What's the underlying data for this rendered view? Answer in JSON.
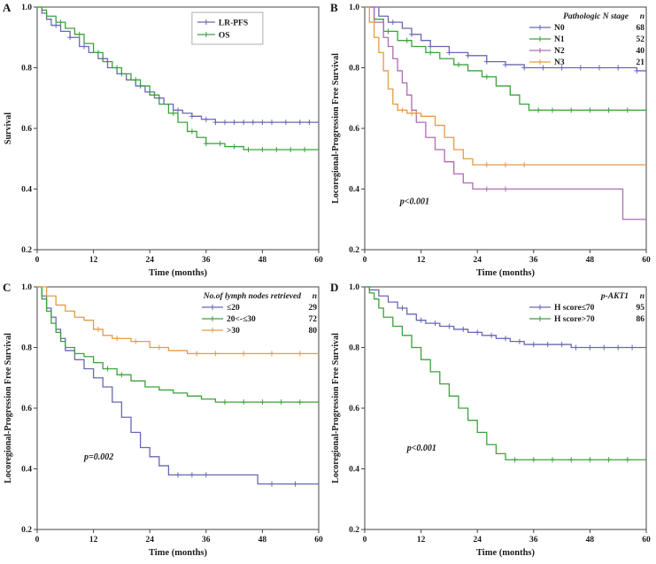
{
  "chart_data": [
    {
      "panel_label": "A",
      "type": "line",
      "subtype": "kaplan-meier",
      "xlabel": "Time (months)",
      "ylabel": "Survival",
      "xlim": [
        0,
        60
      ],
      "ylim": [
        0.2,
        1.0
      ],
      "xticks": [
        0,
        12,
        24,
        36,
        48,
        60
      ],
      "yticks": [
        0.2,
        0.4,
        0.6,
        0.8,
        1.0
      ],
      "grid": false,
      "legend": {
        "anchor": "top-center",
        "bordered": true,
        "title": null,
        "show_n": false
      },
      "annotation": null,
      "series": [
        {
          "name": "LR-PFS",
          "color": "#6868b5",
          "points": [
            [
              0,
              1.0
            ],
            [
              1,
              0.98
            ],
            [
              2,
              0.96
            ],
            [
              3,
              0.94
            ],
            [
              5,
              0.92
            ],
            [
              7,
              0.9
            ],
            [
              9,
              0.87
            ],
            [
              11,
              0.85
            ],
            [
              13,
              0.83
            ],
            [
              15,
              0.8
            ],
            [
              17,
              0.78
            ],
            [
              19,
              0.76
            ],
            [
              21,
              0.74
            ],
            [
              23,
              0.72
            ],
            [
              25,
              0.7
            ],
            [
              27,
              0.68
            ],
            [
              29,
              0.66
            ],
            [
              31,
              0.65
            ],
            [
              33,
              0.64
            ],
            [
              35,
              0.63
            ],
            [
              38,
              0.62
            ],
            [
              60,
              0.62
            ]
          ],
          "censors": [
            4,
            7,
            10,
            14,
            18,
            22,
            26,
            30,
            33,
            36,
            38,
            40,
            42,
            44,
            46,
            48,
            50,
            53,
            56,
            58
          ]
        },
        {
          "name": "OS",
          "color": "#3da23d",
          "points": [
            [
              0,
              1.0
            ],
            [
              1,
              0.99
            ],
            [
              2,
              0.97
            ],
            [
              4,
              0.95
            ],
            [
              6,
              0.93
            ],
            [
              8,
              0.91
            ],
            [
              10,
              0.88
            ],
            [
              12,
              0.85
            ],
            [
              14,
              0.82
            ],
            [
              16,
              0.8
            ],
            [
              18,
              0.78
            ],
            [
              20,
              0.76
            ],
            [
              22,
              0.74
            ],
            [
              24,
              0.71
            ],
            [
              26,
              0.68
            ],
            [
              28,
              0.65
            ],
            [
              30,
              0.62
            ],
            [
              32,
              0.59
            ],
            [
              34,
              0.57
            ],
            [
              36,
              0.55
            ],
            [
              40,
              0.54
            ],
            [
              44,
              0.53
            ],
            [
              60,
              0.53
            ]
          ],
          "censors": [
            5,
            9,
            13,
            17,
            21,
            25,
            29,
            33,
            36,
            39,
            42,
            45,
            48,
            51,
            54,
            57
          ]
        }
      ]
    },
    {
      "panel_label": "B",
      "type": "line",
      "subtype": "kaplan-meier",
      "xlabel": "Time (months)",
      "ylabel": "Locoregional-Progression Free Survival",
      "xlim": [
        0,
        60
      ],
      "ylim": [
        0.2,
        1.0
      ],
      "xticks": [
        0,
        12,
        24,
        36,
        48,
        60
      ],
      "yticks": [
        0.2,
        0.4,
        0.6,
        0.8,
        1.0
      ],
      "grid": false,
      "legend": {
        "anchor": "top-right",
        "bordered": false,
        "title": "Pathologic N stage",
        "show_n": true
      },
      "annotation": {
        "text": "p<0.001",
        "x": 7.5,
        "y": 0.35
      },
      "series": [
        {
          "name": "N0",
          "n": 68,
          "color": "#6868b5",
          "points": [
            [
              0,
              1.0
            ],
            [
              3,
              0.97
            ],
            [
              5,
              0.95
            ],
            [
              8,
              0.93
            ],
            [
              10,
              0.91
            ],
            [
              12,
              0.89
            ],
            [
              14,
              0.87
            ],
            [
              18,
              0.85
            ],
            [
              22,
              0.84
            ],
            [
              26,
              0.82
            ],
            [
              30,
              0.81
            ],
            [
              34,
              0.8
            ],
            [
              44,
              0.8
            ],
            [
              58,
              0.79
            ],
            [
              60,
              0.79
            ]
          ],
          "censors": [
            6,
            10,
            14,
            18,
            22,
            26,
            30,
            34,
            38,
            42,
            46,
            50,
            54,
            58
          ]
        },
        {
          "name": "N1",
          "n": 52,
          "color": "#3da23d",
          "points": [
            [
              0,
              1.0
            ],
            [
              2,
              0.96
            ],
            [
              4,
              0.92
            ],
            [
              7,
              0.89
            ],
            [
              10,
              0.87
            ],
            [
              13,
              0.85
            ],
            [
              16,
              0.83
            ],
            [
              19,
              0.81
            ],
            [
              22,
              0.79
            ],
            [
              25,
              0.77
            ],
            [
              28,
              0.74
            ],
            [
              31,
              0.71
            ],
            [
              33,
              0.68
            ],
            [
              35,
              0.66
            ],
            [
              60,
              0.66
            ]
          ],
          "censors": [
            5,
            9,
            14,
            20,
            26,
            37,
            40,
            44,
            48,
            52,
            56
          ]
        },
        {
          "name": "N2",
          "n": 40,
          "color": "#ad6cb5",
          "points": [
            [
              0,
              1.0
            ],
            [
              2,
              0.95
            ],
            [
              4,
              0.9
            ],
            [
              5,
              0.87
            ],
            [
              6,
              0.83
            ],
            [
              7,
              0.79
            ],
            [
              8,
              0.75
            ],
            [
              9,
              0.71
            ],
            [
              10,
              0.66
            ],
            [
              11,
              0.62
            ],
            [
              13,
              0.57
            ],
            [
              15,
              0.53
            ],
            [
              17,
              0.49
            ],
            [
              19,
              0.45
            ],
            [
              21,
              0.42
            ],
            [
              23,
              0.4
            ],
            [
              54,
              0.4
            ],
            [
              55,
              0.3
            ],
            [
              60,
              0.3
            ]
          ],
          "censors": [
            26,
            30
          ]
        },
        {
          "name": "N3",
          "n": 21,
          "color": "#e39c47",
          "points": [
            [
              0,
              1.0
            ],
            [
              1,
              0.95
            ],
            [
              2,
              0.9
            ],
            [
              3,
              0.85
            ],
            [
              4,
              0.79
            ],
            [
              5,
              0.73
            ],
            [
              6,
              0.68
            ],
            [
              7,
              0.66
            ],
            [
              9,
              0.65
            ],
            [
              12,
              0.64
            ],
            [
              15,
              0.61
            ],
            [
              17,
              0.57
            ],
            [
              19,
              0.53
            ],
            [
              21,
              0.5
            ],
            [
              23,
              0.48
            ],
            [
              60,
              0.48
            ]
          ],
          "censors": [
            8,
            10,
            11,
            26,
            30,
            34
          ]
        }
      ]
    },
    {
      "panel_label": "C",
      "type": "line",
      "subtype": "kaplan-meier",
      "xlabel": "Time (months)",
      "ylabel": "Locoregional-Progression Free Survival",
      "xlim": [
        0,
        60
      ],
      "ylim": [
        0.2,
        1.0
      ],
      "xticks": [
        0,
        12,
        24,
        36,
        48,
        60
      ],
      "yticks": [
        0.2,
        0.4,
        0.6,
        0.8,
        1.0
      ],
      "grid": false,
      "legend": {
        "anchor": "top-right",
        "bordered": false,
        "title": "No.of lymph nodes retrieved",
        "show_n": true
      },
      "annotation": {
        "text": "p=0.002",
        "x": 10,
        "y": 0.43
      },
      "series": [
        {
          "name": "≤20",
          "n": 29,
          "color": "#6868b5",
          "points": [
            [
              0,
              1.0
            ],
            [
              1,
              0.97
            ],
            [
              2,
              0.93
            ],
            [
              3,
              0.9
            ],
            [
              4,
              0.86
            ],
            [
              5,
              0.83
            ],
            [
              6,
              0.79
            ],
            [
              8,
              0.76
            ],
            [
              10,
              0.73
            ],
            [
              12,
              0.7
            ],
            [
              14,
              0.67
            ],
            [
              16,
              0.62
            ],
            [
              18,
              0.57
            ],
            [
              20,
              0.52
            ],
            [
              22,
              0.47
            ],
            [
              24,
              0.44
            ],
            [
              26,
              0.41
            ],
            [
              28,
              0.38
            ],
            [
              46,
              0.38
            ],
            [
              47,
              0.35
            ],
            [
              60,
              0.35
            ]
          ],
          "censors": [
            30,
            33,
            36,
            50,
            55
          ]
        },
        {
          "name": "20<-≤30",
          "n": 72,
          "color": "#3da23d",
          "points": [
            [
              0,
              1.0
            ],
            [
              1,
              0.96
            ],
            [
              2,
              0.92
            ],
            [
              3,
              0.88
            ],
            [
              4,
              0.85
            ],
            [
              5,
              0.82
            ],
            [
              6,
              0.8
            ],
            [
              8,
              0.78
            ],
            [
              10,
              0.77
            ],
            [
              12,
              0.75
            ],
            [
              14,
              0.73
            ],
            [
              17,
              0.71
            ],
            [
              20,
              0.69
            ],
            [
              23,
              0.67
            ],
            [
              26,
              0.66
            ],
            [
              29,
              0.65
            ],
            [
              32,
              0.64
            ],
            [
              35,
              0.63
            ],
            [
              38,
              0.62
            ],
            [
              60,
              0.62
            ]
          ],
          "censors": [
            15,
            18,
            40,
            44,
            48,
            52,
            56
          ]
        },
        {
          "name": ">30",
          "n": 80,
          "color": "#e39c47",
          "points": [
            [
              0,
              1.0
            ],
            [
              2,
              0.97
            ],
            [
              4,
              0.94
            ],
            [
              6,
              0.92
            ],
            [
              8,
              0.9
            ],
            [
              10,
              0.89
            ],
            [
              12,
              0.86
            ],
            [
              14,
              0.84
            ],
            [
              16,
              0.83
            ],
            [
              20,
              0.82
            ],
            [
              24,
              0.8
            ],
            [
              28,
              0.79
            ],
            [
              32,
              0.78
            ],
            [
              60,
              0.78
            ]
          ],
          "censors": [
            13,
            17,
            21,
            26,
            34,
            38,
            44,
            50,
            56
          ]
        }
      ]
    },
    {
      "panel_label": "D",
      "type": "line",
      "subtype": "kaplan-meier",
      "xlabel": "Time (months)",
      "ylabel": "Locoregional-Progression Free Survival",
      "xlim": [
        0,
        60
      ],
      "ylim": [
        0.2,
        1.0
      ],
      "xticks": [
        0,
        12,
        24,
        36,
        48,
        60
      ],
      "yticks": [
        0.2,
        0.4,
        0.6,
        0.8,
        1.0
      ],
      "grid": false,
      "legend": {
        "anchor": "top-right",
        "bordered": false,
        "title": "p-AKT1",
        "show_n": true
      },
      "annotation": {
        "text": "p<0.001",
        "x": 9,
        "y": 0.46
      },
      "series": [
        {
          "name": "H score≤70",
          "n": 95,
          "color": "#6868b5",
          "points": [
            [
              0,
              1.0
            ],
            [
              1,
              0.99
            ],
            [
              3,
              0.97
            ],
            [
              5,
              0.95
            ],
            [
              7,
              0.93
            ],
            [
              9,
              0.91
            ],
            [
              11,
              0.89
            ],
            [
              13,
              0.88
            ],
            [
              16,
              0.87
            ],
            [
              19,
              0.86
            ],
            [
              22,
              0.85
            ],
            [
              25,
              0.84
            ],
            [
              28,
              0.83
            ],
            [
              31,
              0.82
            ],
            [
              34,
              0.81
            ],
            [
              44,
              0.8
            ],
            [
              60,
              0.8
            ]
          ],
          "censors": [
            8,
            12,
            15,
            18,
            21,
            24,
            27,
            30,
            33,
            36,
            39,
            42,
            45,
            48,
            51,
            54,
            57
          ]
        },
        {
          "name": "H score>70",
          "n": 86,
          "color": "#3da23d",
          "points": [
            [
              0,
              1.0
            ],
            [
              1,
              0.98
            ],
            [
              2,
              0.96
            ],
            [
              3,
              0.93
            ],
            [
              4,
              0.9
            ],
            [
              6,
              0.87
            ],
            [
              8,
              0.84
            ],
            [
              10,
              0.8
            ],
            [
              12,
              0.76
            ],
            [
              14,
              0.72
            ],
            [
              16,
              0.68
            ],
            [
              18,
              0.64
            ],
            [
              20,
              0.6
            ],
            [
              22,
              0.56
            ],
            [
              24,
              0.52
            ],
            [
              26,
              0.48
            ],
            [
              28,
              0.45
            ],
            [
              30,
              0.43
            ],
            [
              60,
              0.43
            ]
          ],
          "censors": [
            32,
            36,
            40,
            44,
            48,
            52,
            56
          ]
        }
      ]
    }
  ]
}
